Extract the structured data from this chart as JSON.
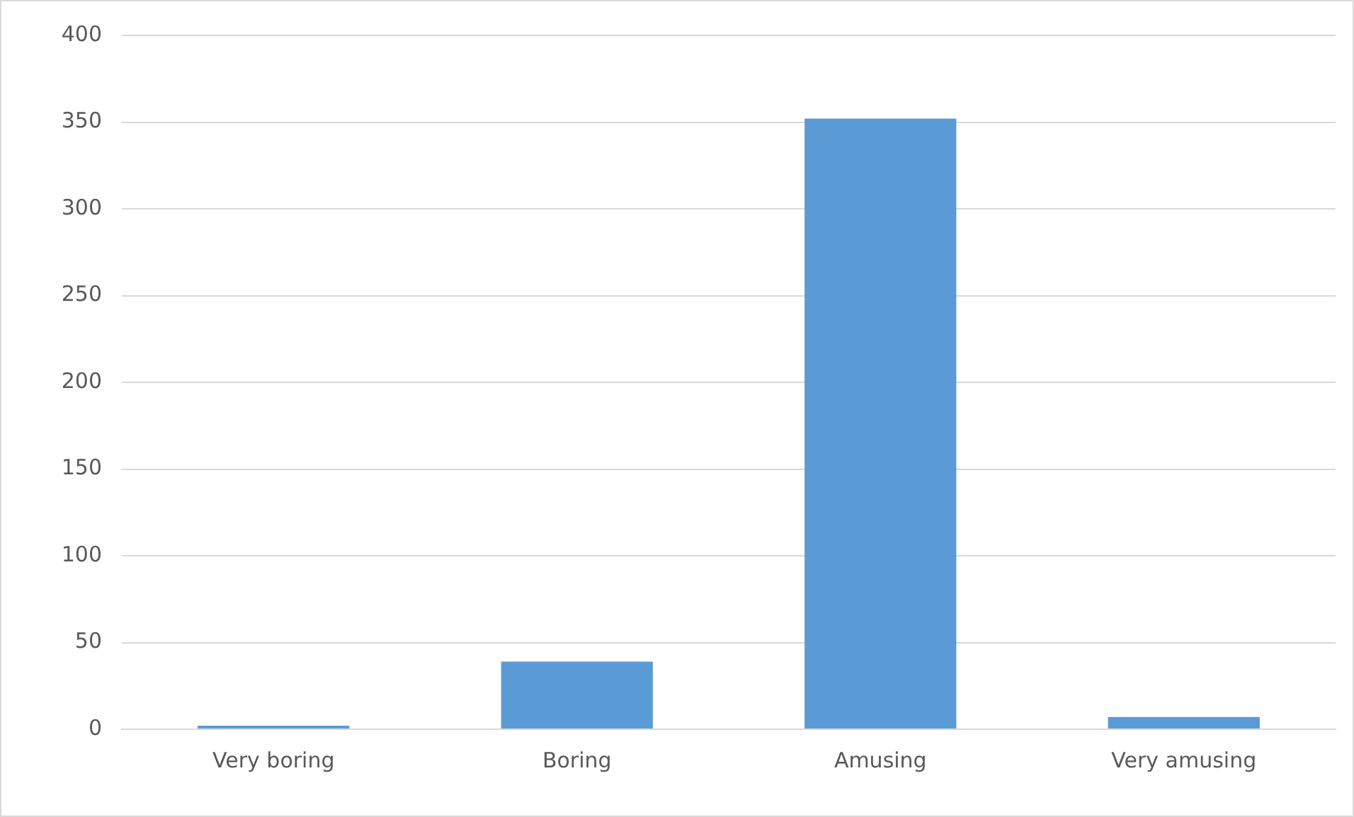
{
  "chart_data": {
    "type": "bar",
    "categories": [
      "Very boring",
      "Boring",
      "Amusing",
      "Very amusing"
    ],
    "values": [
      2,
      39,
      352,
      7
    ],
    "color": "#5b9bd5",
    "ylim": [
      0,
      400
    ],
    "yticks": [
      0,
      50,
      100,
      150,
      200,
      250,
      300,
      350,
      400
    ],
    "grid": "y",
    "legend": false
  }
}
